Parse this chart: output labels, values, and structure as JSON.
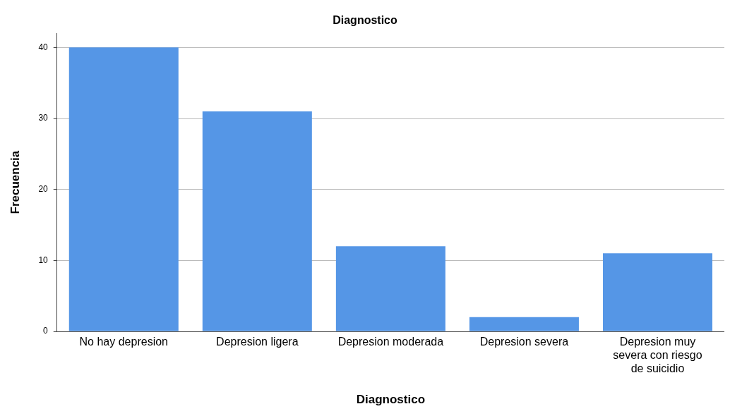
{
  "chart_data": {
    "type": "bar",
    "title": "Diagnostico",
    "xlabel": "Diagnostico",
    "ylabel": "Frecuencia",
    "categories": [
      "No hay depresion",
      "Depresion ligera",
      "Depresion moderada",
      "Depresion severa",
      "Depresion muy severa con riesgo de suicidio"
    ],
    "values": [
      40,
      31,
      12,
      2,
      11
    ],
    "color": "#5596e6",
    "ylim": [
      0,
      42
    ],
    "yticks": [
      0,
      10,
      20,
      30,
      40
    ],
    "grid": "y",
    "legend": false
  }
}
